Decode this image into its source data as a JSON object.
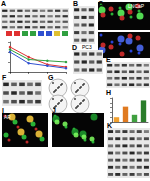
{
  "panels": [
    "A",
    "B",
    "C",
    "D",
    "E",
    "F",
    "G",
    "H",
    "I",
    "J",
    "K"
  ],
  "labels": {
    "C": "LNCaP",
    "D": "PC3",
    "I": "AR"
  },
  "chart_data": [
    {
      "type": "line",
      "x": [
        1,
        2,
        3,
        4
      ],
      "xlim": [
        1,
        4
      ],
      "xticks": [
        1,
        2,
        3,
        4
      ],
      "ylim": [
        0,
        1.2
      ],
      "yticks": [
        0,
        0.4,
        0.8,
        1.2
      ],
      "tick_labels": false,
      "marker": "circle",
      "series": [
        {
          "color": "#e03030",
          "values": [
            1.0,
            0.6,
            0.3,
            0.2
          ]
        },
        {
          "color": "#30a040",
          "values": [
            0.9,
            0.5,
            0.45,
            0.4
          ]
        },
        {
          "color": "#3050d0",
          "values": [
            0.8,
            0.35,
            0.25,
            0.15
          ]
        }
      ]
    },
    {
      "type": "bar",
      "categories": [
        null,
        null,
        null,
        null
      ],
      "values": [
        1,
        3.2,
        1.5,
        4.5
      ],
      "colors": [
        "#f0a030",
        "#e07a20",
        "#40a040",
        "#2a7d2a"
      ],
      "ylim": [
        0,
        5
      ],
      "yticks": [
        0,
        1,
        2,
        3,
        4,
        5
      ],
      "tick_labels": false
    }
  ]
}
